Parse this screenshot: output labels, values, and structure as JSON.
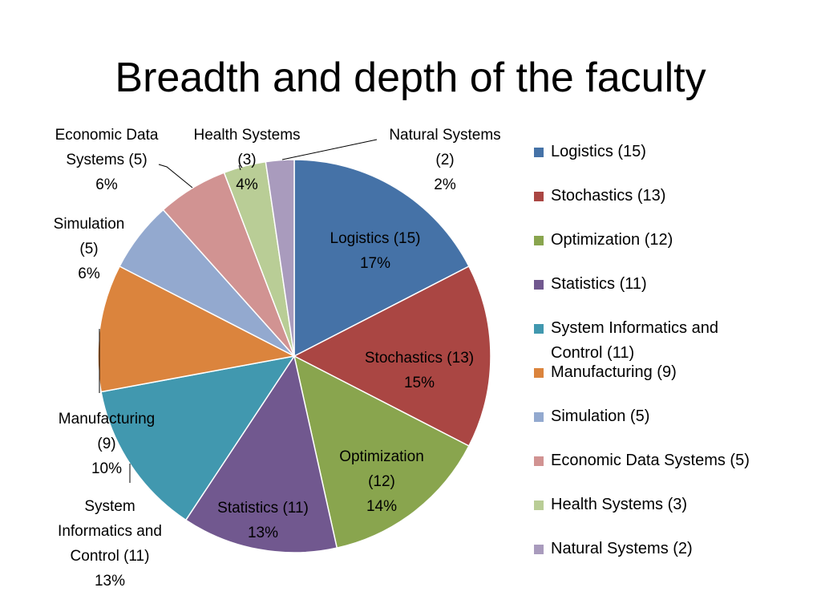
{
  "chart_data": {
    "type": "pie",
    "title": "Breadth and depth of the faculty",
    "slices": [
      {
        "name": "Logistics (15)",
        "label_lines": [
          "Logistics (15)",
          "17%"
        ],
        "value": 15,
        "percent": "17%",
        "color": "#4572A7"
      },
      {
        "name": "Stochastics (13)",
        "label_lines": [
          "Stochastics (13)",
          "15%"
        ],
        "value": 13,
        "percent": "15%",
        "color": "#AA4643"
      },
      {
        "name": "Optimization (12)",
        "label_lines": [
          "Optimization",
          "(12)",
          "14%"
        ],
        "value": 12,
        "percent": "14%",
        "color": "#89A54E"
      },
      {
        "name": "Statistics (11)",
        "label_lines": [
          "Statistics (11)",
          "13%"
        ],
        "value": 11,
        "percent": "13%",
        "color": "#71588F"
      },
      {
        "name": "System Informatics and Control (11)",
        "label_lines": [
          "System",
          "Informatics and",
          "Control (11)",
          "13%"
        ],
        "value": 11,
        "percent": "13%",
        "color": "#4198AF"
      },
      {
        "name": "Manufacturing (9)",
        "label_lines": [
          "Manufacturing",
          "(9)",
          "10%"
        ],
        "value": 9,
        "percent": "10%",
        "color": "#DB843D"
      },
      {
        "name": "Simulation (5)",
        "label_lines": [
          "Simulation",
          "(5)",
          "6%"
        ],
        "value": 5,
        "percent": "6%",
        "color": "#93A9CF"
      },
      {
        "name": "Economic Data Systems (5)",
        "label_lines": [
          "Economic Data",
          "Systems (5)",
          "6%"
        ],
        "value": 5,
        "percent": "6%",
        "color": "#D19392"
      },
      {
        "name": "Health Systems (3)",
        "label_lines": [
          "Health Systems",
          "(3)",
          "4%"
        ],
        "value": 3,
        "percent": "4%",
        "color": "#B9CD96"
      },
      {
        "name": "Natural Systems (2)",
        "label_lines": [
          "Natural Systems",
          "(2)",
          "2%"
        ],
        "value": 2,
        "percent": "2%",
        "color": "#A99BBD"
      }
    ],
    "legend": {
      "placement": "right",
      "entries": [
        "Logistics (15)",
        "Stochastics (13)",
        "Optimization (12)",
        "Statistics (11)",
        "System Informatics and Control (11)",
        "Manufacturing (9)",
        "Simulation (5)",
        "Economic Data Systems (5)",
        "Health Systems (3)",
        "Natural Systems (2)"
      ]
    }
  }
}
